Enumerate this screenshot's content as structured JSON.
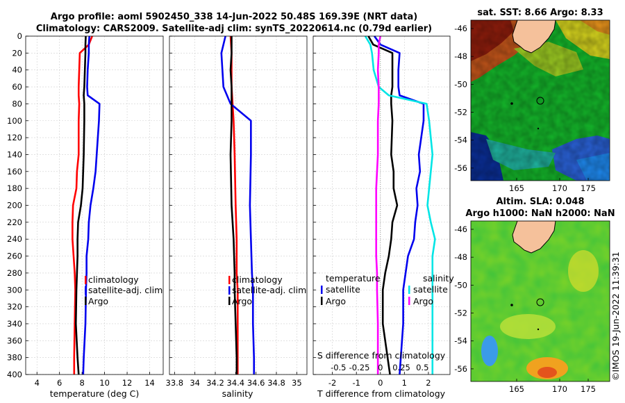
{
  "title": {
    "line1": "Argo profile: aoml 5902450_338 14-Jun-2022 50.48S 169.39E (NRT data)",
    "line2": "Climatology: CARS2009. Satellite-adj clim: synTS_20220614.nc (0.79d earlier)"
  },
  "map_sst": {
    "title": "sat. SST: 8.66 Argo: 8.33",
    "y_ticks": [
      "-46",
      "-48",
      "-50",
      "-52",
      "-54",
      "-56"
    ],
    "x_ticks": [
      "165",
      "170",
      "175"
    ]
  },
  "map_sla": {
    "title1": "Altim. SLA: 0.048",
    "title2": "Argo h1000: NaN h2000: NaN",
    "y_ticks": [
      "-46",
      "-48",
      "-50",
      "-52",
      "-54",
      "-56"
    ],
    "x_ticks": [
      "165",
      "170",
      "175"
    ]
  },
  "credit": "©IMOS 19-Jun-2022 11:39:31",
  "depth_ticks": [
    "0",
    "20",
    "40",
    "60",
    "80",
    "100",
    "120",
    "140",
    "160",
    "180",
    "200",
    "220",
    "240",
    "260",
    "280",
    "300",
    "320",
    "340",
    "360",
    "380",
    "400"
  ],
  "colors": {
    "climatology": "#ff0000",
    "satellite": "#0000ee",
    "argo": "#000000",
    "t_sat": "#00e5e5",
    "s_diff": "#ff00ff",
    "land": "#f5c19b"
  },
  "chart_data": [
    {
      "type": "line",
      "name": "temperature",
      "xlabel": "temperature (deg C)",
      "ylabel": "depth",
      "xlim": [
        3,
        15.2
      ],
      "ylim": [
        400,
        0
      ],
      "x_ticks": [
        4,
        6,
        8,
        10,
        12,
        14
      ],
      "grid": true,
      "legend": [
        "climatology",
        "satellite-adj. clim",
        "Argo"
      ],
      "depths": [
        0,
        10,
        20,
        40,
        60,
        70,
        80,
        100,
        140,
        160,
        180,
        200,
        220,
        240,
        260,
        280,
        300,
        340,
        380,
        400
      ],
      "series": [
        {
          "name": "climatology",
          "values": [
            8.9,
            8.6,
            7.8,
            7.75,
            7.7,
            7.7,
            7.75,
            7.7,
            7.7,
            7.55,
            7.5,
            7.2,
            7.15,
            7.15,
            7.25,
            7.35,
            7.4,
            7.35,
            7.3,
            7.3
          ]
        },
        {
          "name": "satellite-adj. clim",
          "values": [
            8.65,
            8.6,
            8.6,
            8.5,
            8.45,
            8.5,
            9.55,
            9.5,
            9.3,
            9.2,
            9.0,
            8.75,
            8.6,
            8.55,
            8.4,
            8.4,
            8.35,
            8.3,
            8.15,
            8.1
          ]
        },
        {
          "name": "Argo",
          "values": [
            8.33,
            8.3,
            8.3,
            8.25,
            8.2,
            8.15,
            8.2,
            8.2,
            8.15,
            8.1,
            8.05,
            7.9,
            7.65,
            7.6,
            7.6,
            7.55,
            7.5,
            7.45,
            7.6,
            7.7
          ]
        }
      ]
    },
    {
      "type": "line",
      "name": "salinity",
      "xlabel": "salinity",
      "ylabel": "depth",
      "xlim": [
        33.75,
        35.1
      ],
      "ylim": [
        400,
        0
      ],
      "x_ticks": [
        33.8,
        34,
        34.2,
        34.4,
        34.6,
        34.8,
        35
      ],
      "grid": true,
      "legend": [
        "climatology",
        "satellite-adj. clim",
        "Argo"
      ],
      "depths": [
        0,
        20,
        40,
        60,
        80,
        100,
        140,
        200,
        240,
        280,
        300,
        340,
        380,
        400
      ],
      "series": [
        {
          "name": "climatology",
          "values": [
            34.35,
            34.36,
            34.36,
            34.36,
            34.37,
            34.38,
            34.39,
            34.4,
            34.41,
            34.41,
            34.42,
            34.42,
            34.42,
            34.42
          ]
        },
        {
          "name": "satellite-adj. clim",
          "values": [
            34.3,
            34.26,
            34.27,
            34.28,
            34.35,
            34.55,
            34.55,
            34.54,
            34.55,
            34.56,
            34.57,
            34.57,
            34.58,
            34.58
          ]
        },
        {
          "name": "Argo",
          "values": [
            34.36,
            34.36,
            34.35,
            34.36,
            34.36,
            34.36,
            34.35,
            34.36,
            34.38,
            34.39,
            34.39,
            34.4,
            34.41,
            34.41
          ]
        }
      ]
    },
    {
      "type": "line",
      "name": "difference from climatology",
      "xlabel": "T difference from climatology",
      "ylabel": "depth",
      "xlim": [
        -2.8,
        2.9
      ],
      "ylim": [
        400,
        0
      ],
      "x_ticks": [
        -2,
        -1,
        0,
        1,
        2
      ],
      "top_axis_label": "S difference from climatology",
      "top_ticks": [
        "-0.5",
        "-0.25",
        "0",
        "0.25",
        "0.5"
      ],
      "grid": true,
      "legend_groups": [
        {
          "title": "temperature",
          "entries": [
            "satellite",
            "Argo"
          ]
        },
        {
          "title": "salinity",
          "entries": [
            "satellite",
            "Argo"
          ]
        }
      ],
      "depths": [
        0,
        10,
        20,
        40,
        60,
        70,
        80,
        100,
        140,
        160,
        180,
        200,
        220,
        240,
        260,
        280,
        300,
        340,
        380,
        400
      ],
      "series": [
        {
          "name": "temperature satellite",
          "values": [
            -0.25,
            0.0,
            0.8,
            0.75,
            0.75,
            0.8,
            1.8,
            1.8,
            1.6,
            1.65,
            1.5,
            1.55,
            1.45,
            1.4,
            1.15,
            1.05,
            0.95,
            0.95,
            0.85,
            0.8
          ]
        },
        {
          "name": "temperature Argo",
          "values": [
            -0.5,
            -0.3,
            0.5,
            0.5,
            0.5,
            0.45,
            0.45,
            0.5,
            0.45,
            0.55,
            0.55,
            0.7,
            0.5,
            0.45,
            0.35,
            0.2,
            0.1,
            0.1,
            0.3,
            0.4
          ]
        },
        {
          "name": "salinity satellite",
          "values": [
            -0.18,
            -0.12,
            -0.1,
            -0.08,
            -0.02,
            0.1,
            0.55,
            0.58,
            0.62,
            0.6,
            0.58,
            0.56,
            0.6,
            0.65,
            0.62,
            0.62,
            0.62,
            0.62,
            0.62,
            0.62
          ]
        },
        {
          "name": "salinity Argo",
          "values": [
            0.0,
            -0.02,
            -0.02,
            -0.03,
            -0.02,
            -0.02,
            -0.02,
            -0.03,
            -0.03,
            -0.04,
            -0.05,
            -0.05,
            -0.05,
            -0.05,
            -0.05,
            -0.04,
            -0.04,
            -0.03,
            -0.03,
            -0.03
          ]
        }
      ]
    }
  ]
}
